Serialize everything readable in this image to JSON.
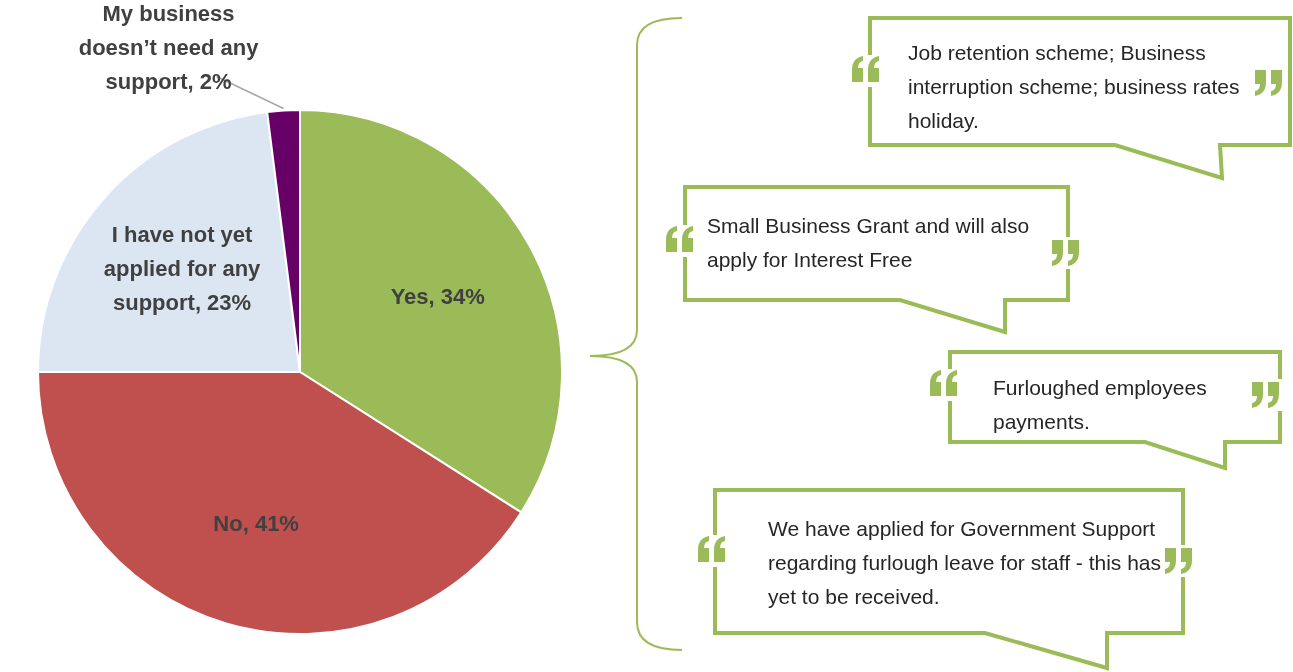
{
  "chart_data": {
    "type": "pie",
    "categories": [
      "Yes",
      "No",
      "I have not yet applied for any support",
      "My business doesn’t need any support"
    ],
    "values": [
      34,
      41,
      23,
      2
    ],
    "value_labels": [
      "34%",
      "41%",
      "23%",
      "2%"
    ],
    "colors": [
      "#9bbb59",
      "#c0504d",
      "#dce6f2",
      "#660066"
    ],
    "legend": false,
    "annotations": [
      "Job retention scheme; Business interruption scheme; business rates holiday.",
      "Small Business Grant and will also apply for Interest Free",
      "Furloughed employees payments.",
      "We have applied for Government Support regarding furlough leave for staff - this has yet to be received."
    ]
  }
}
